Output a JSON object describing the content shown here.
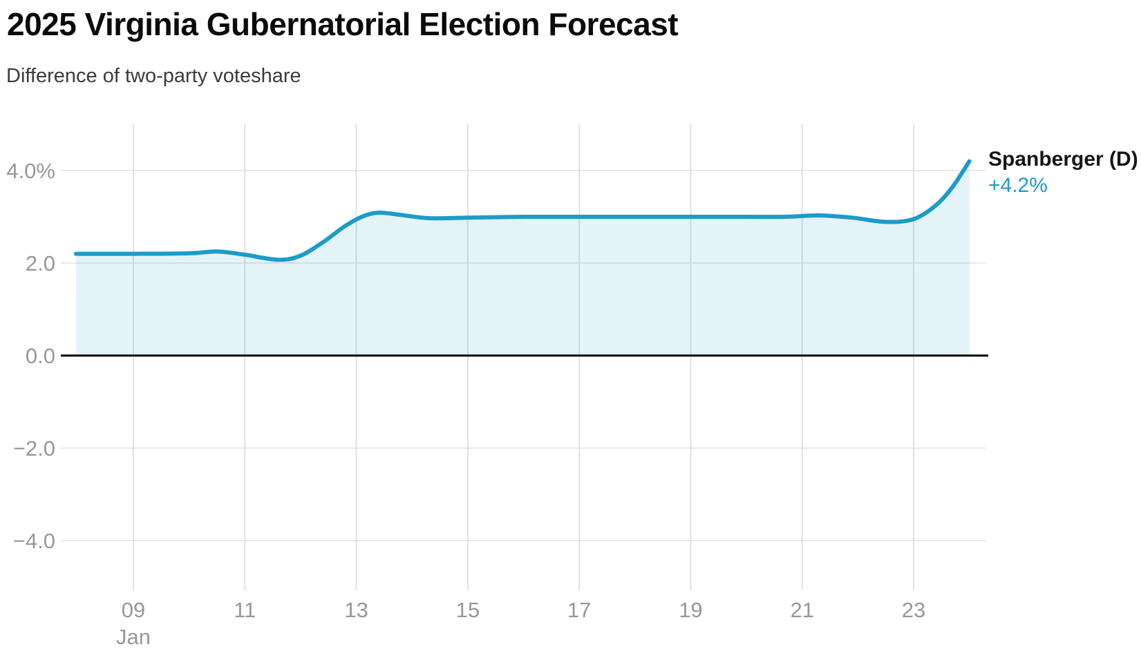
{
  "header": {
    "title": "2025 Virginia Gubernatorial Election Forecast",
    "subtitle": "Difference of two-party voteshare"
  },
  "chart_data": {
    "type": "area",
    "title": "2025 Virginia Gubernatorial Election Forecast",
    "subtitle": "Difference of two-party voteshare",
    "series": [
      {
        "name": "Spanberger (D)",
        "end_label": "+4.2%",
        "end_value": 4.2,
        "color": "#1d9bc9",
        "fill_rgba": "rgba(31,155,200,0.12)",
        "x_month": "Jan",
        "x": [
          7.97,
          9,
          10,
          10.5,
          11,
          11.6,
          12,
          12.4,
          12.8,
          13.1,
          13.4,
          13.8,
          14.3,
          15,
          16,
          17,
          18,
          19,
          20,
          20.7,
          21.3,
          21.9,
          22.5,
          23,
          23.4,
          23.7,
          24
        ],
        "values": [
          2.2,
          2.2,
          2.21,
          2.25,
          2.18,
          2.07,
          2.16,
          2.45,
          2.8,
          3.0,
          3.09,
          3.04,
          2.97,
          2.98,
          3.0,
          3.0,
          3.0,
          3.0,
          3.0,
          3.0,
          3.03,
          2.98,
          2.89,
          2.95,
          3.25,
          3.65,
          4.2
        ]
      }
    ],
    "x_axis": {
      "month_label": "Jan",
      "tick_values": [
        9,
        11,
        13,
        15,
        17,
        19,
        21,
        23
      ],
      "tick_labels": [
        "09",
        "11",
        "13",
        "15",
        "17",
        "19",
        "21",
        "23"
      ],
      "range": [
        7.97,
        24.3
      ]
    },
    "y_axis": {
      "tick_values": [
        4,
        2,
        0,
        -2,
        -4
      ],
      "tick_labels": [
        "4.0%",
        "2.0",
        "0.0",
        "−2.0",
        "−4.0"
      ],
      "range": [
        -5.05,
        5.0
      ],
      "unit": "%"
    },
    "baseline": 0,
    "grid": true,
    "legend_position": "right-of-line-end",
    "colors": {
      "line": "#1d9bc9",
      "zero_line": "#000000",
      "grid_vertical": "#dfe1e2",
      "grid_horizontal": "#e8e9e9",
      "tick_text": "#979797"
    }
  }
}
